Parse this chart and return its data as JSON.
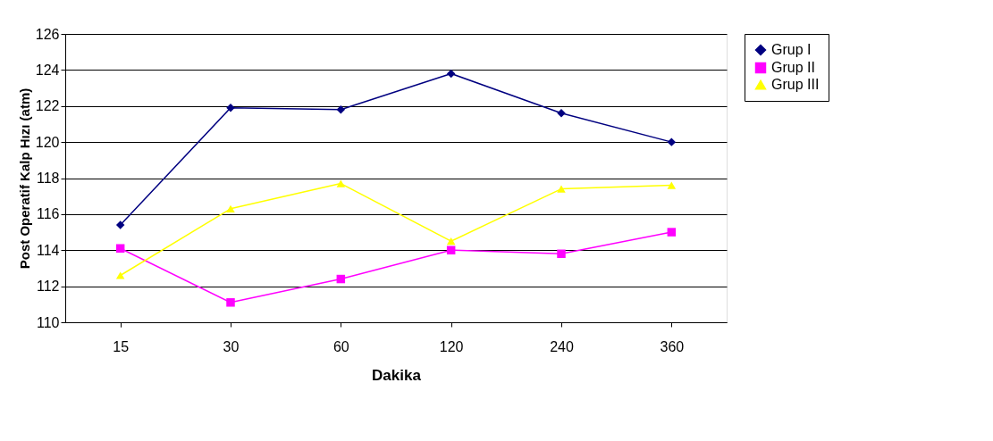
{
  "chart_data": {
    "type": "line",
    "xlabel": "Dakika",
    "ylabel": "Post Operatif Kalp Hızı (atm)",
    "categories": [
      "15",
      "30",
      "60",
      "120",
      "240",
      "360"
    ],
    "ylim": [
      110,
      126
    ],
    "yticks": [
      110,
      112,
      114,
      116,
      118,
      120,
      122,
      124,
      126
    ],
    "grid": "y",
    "legend": "right",
    "line_style": "solid",
    "series": [
      {
        "name": "Grup I",
        "color": "#000080",
        "marker": "diamond",
        "values": [
          115.4,
          121.9,
          121.8,
          123.8,
          121.6,
          120.0
        ]
      },
      {
        "name": "Grup II",
        "color": "#ff00ff",
        "marker": "square",
        "values": [
          114.1,
          111.1,
          112.4,
          114.0,
          113.8,
          115.0
        ]
      },
      {
        "name": "Grup III",
        "color": "#ffff00",
        "marker": "triangle",
        "values": [
          112.6,
          116.3,
          117.7,
          114.5,
          117.4,
          117.6
        ]
      }
    ]
  }
}
